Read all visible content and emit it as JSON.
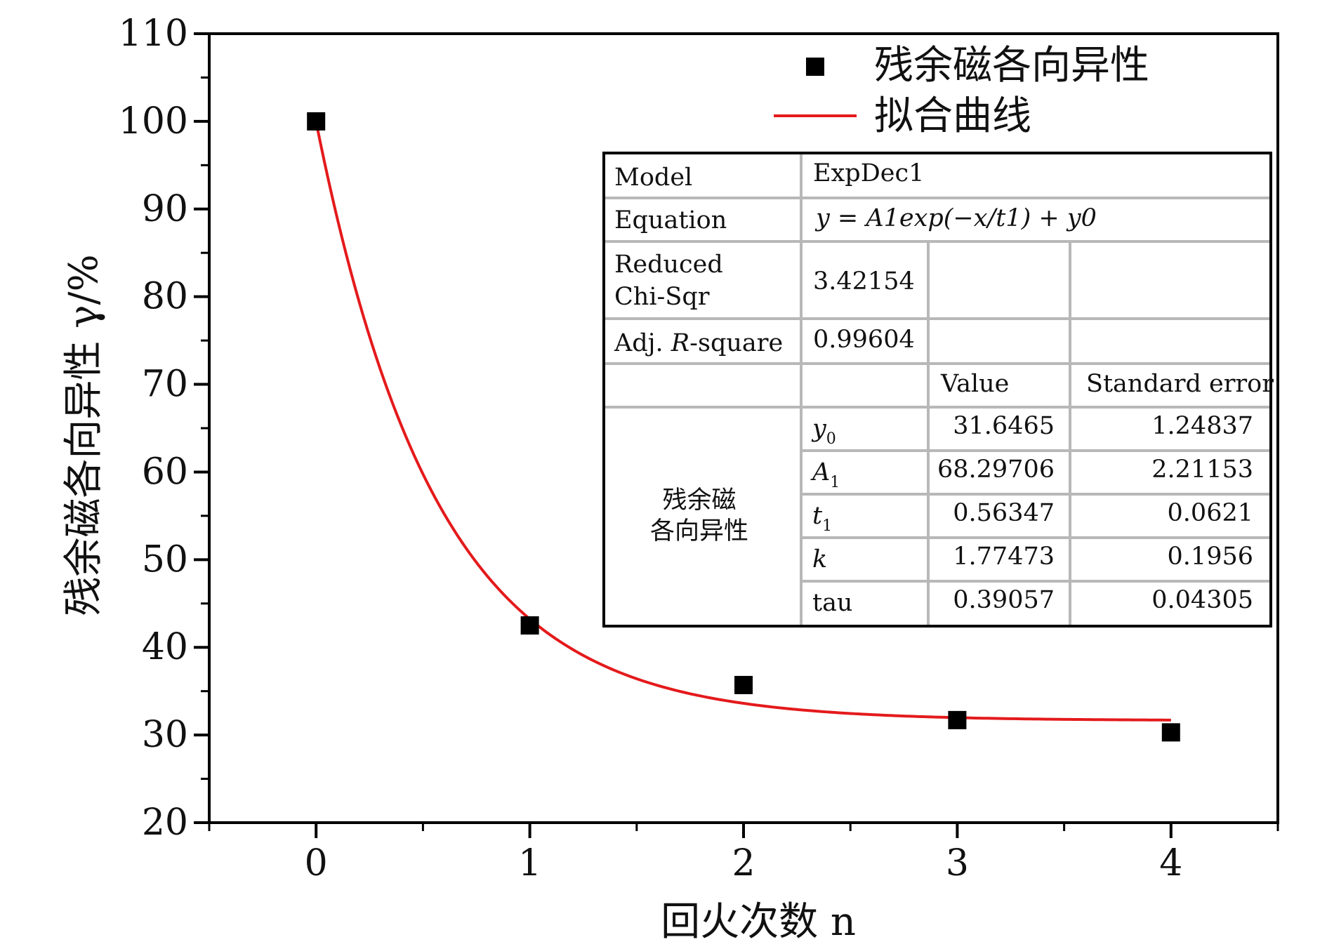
{
  "chart_data": {
    "type": "scatter",
    "xlabel": "回火次数 n",
    "ylabel": "残余磁各向异性 γ/%",
    "xlim": [
      -0.5,
      4.5
    ],
    "ylim": [
      20,
      110
    ],
    "xticks": [
      0,
      1,
      2,
      3,
      4
    ],
    "yticks": [
      20,
      30,
      40,
      50,
      60,
      70,
      80,
      90,
      100,
      110
    ],
    "grid": false,
    "legend_position": "top-right",
    "series": [
      {
        "name": "残余磁各向异性",
        "kind": "scatter",
        "marker": "square",
        "color": "#000000",
        "x": [
          0,
          1,
          2,
          3,
          4
        ],
        "y": [
          100.0,
          42.5,
          35.7,
          31.7,
          30.3
        ]
      },
      {
        "name": "拟合曲线",
        "kind": "line",
        "color": "#e41a1c",
        "model": "ExpDec1",
        "params": {
          "y0": 31.6465,
          "A1": 68.29706,
          "t1": 0.56347
        },
        "x_range": [
          0,
          4
        ]
      }
    ]
  },
  "stats_table": {
    "model_label": "Model",
    "model_value": "ExpDec1",
    "equation_label": "Equation",
    "equation_value": "y = A1exp(−x/t1) + y0",
    "chisqr_label_1": "Reduced",
    "chisqr_label_2": "Chi-Sqr",
    "chisqr_value": "3.42154",
    "adjr_label_1": "Adj. ",
    "adjr_label_2": "R",
    "adjr_label_3": "-square",
    "adjr_value": "0.99604",
    "value_header": "Value",
    "error_header": "Standard error",
    "group_label_1": "残余磁",
    "group_label_2": "各向异性",
    "rows": [
      {
        "param": "y",
        "sub": "0",
        "value": "31.6465",
        "error": "1.24837"
      },
      {
        "param": "A",
        "sub": "1",
        "value": "68.29706",
        "error": "2.21153"
      },
      {
        "param": "t",
        "sub": "1",
        "value": "0.56347",
        "error": "0.0621"
      },
      {
        "param": "k",
        "sub": "",
        "value": "1.77473",
        "error": "0.1956"
      },
      {
        "param": "tau",
        "sub": "",
        "value": "0.39057",
        "error": "0.04305"
      }
    ]
  }
}
